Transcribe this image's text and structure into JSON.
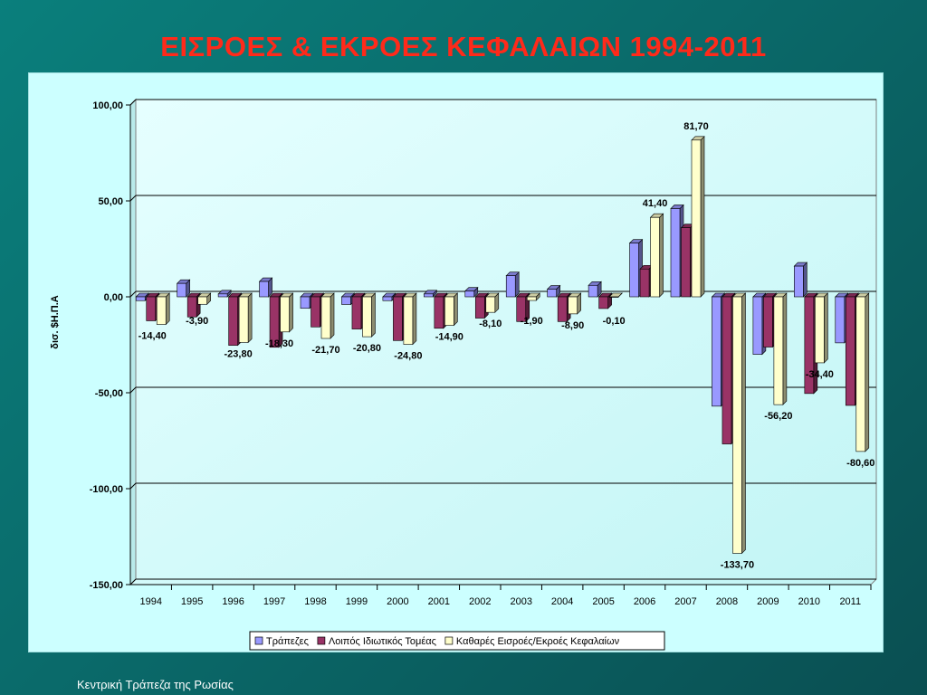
{
  "slide": {
    "title": "ΕΙΣΡΟΕΣ & ΕΚΡΟΕΣ ΚΕΦΑΛΑΙΩΝ 1994-2011",
    "footer": "Κεντρική Τράπεζα της Ρωσίας"
  },
  "colors": {
    "banks": "#9999ff",
    "private": "#993366",
    "net": "#ffffcc",
    "highlight_label": "#ff0000"
  },
  "chart_data": {
    "type": "bar",
    "ylabel": "δισ. $Η.Π.Α",
    "ylim": [
      -150,
      100
    ],
    "yticks": [
      "100,00",
      "50,00",
      "0,00",
      "-50,00",
      "-100,00",
      "-150,00"
    ],
    "ytick_values": [
      100,
      50,
      0,
      -50,
      -100,
      -150
    ],
    "grid": true,
    "legend_position": "bottom",
    "categories": [
      "1994",
      "1995",
      "1996",
      "1997",
      "1998",
      "1999",
      "2000",
      "2001",
      "2002",
      "2003",
      "2004",
      "2005",
      "2006",
      "2007",
      "2008",
      "2009",
      "2010",
      "2011"
    ],
    "series": [
      {
        "name": "Τράπεζες",
        "values": [
          -2,
          7,
          1.5,
          8,
          -6,
          -4,
          -2,
          1.5,
          3,
          11,
          4,
          6,
          28,
          46,
          -57,
          -30,
          16,
          -24
        ]
      },
      {
        "name": "Λοιπός Ιδιωτικός Τομέας",
        "values": [
          -12.5,
          -10.5,
          -25.3,
          -26.3,
          -15.7,
          -16.8,
          -22.8,
          -16.4,
          -11.1,
          -12.9,
          -12.9,
          -6.1,
          14.5,
          36,
          -76.7,
          -26.2,
          -50.4,
          -56.6
        ]
      },
      {
        "name": "Καθαρές Εισροές/Εκροές Κεφαλαίων",
        "values": [
          -14.4,
          -3.9,
          -23.8,
          -18.3,
          -21.7,
          -20.8,
          -24.8,
          -14.9,
          -8.1,
          -1.9,
          -8.9,
          -0.1,
          41.4,
          81.7,
          -133.7,
          -56.2,
          -34.4,
          -80.6
        ]
      }
    ],
    "data_labels": [
      "-14,40",
      "-3,90",
      "-23,80",
      "-18,30",
      "-21,70",
      "-20,80",
      "-24,80",
      "-14,90",
      "-8,10",
      "-1,90",
      "-8,90",
      "-0,10",
      "41,40",
      "81,70",
      "-133,70",
      "-56,20",
      "-34,40",
      "-80,60"
    ],
    "highlighted_label_index": 17
  }
}
